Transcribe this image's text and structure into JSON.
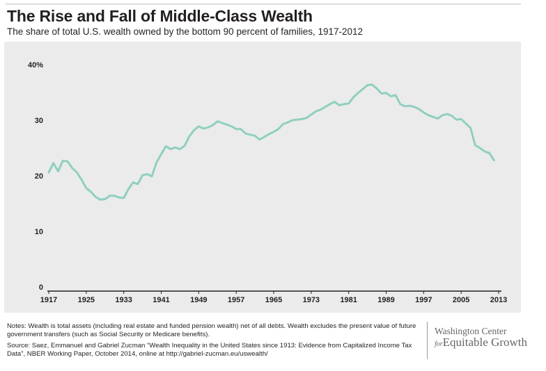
{
  "header": {
    "title": "The Rise and Fall of Middle-Class Wealth",
    "subtitle": "The share of total U.S. wealth owned by the bottom 90 percent of families, 1917-2012"
  },
  "footer": {
    "notes": "Notes: Wealth is total assets (including real estate and funded pension wealth) net of all debts. Wealth excludes the present value of future government transfers (such as Social Security or Medicare benefits).",
    "source": "Source: Saez, Emmanuel and Gabriel Zucman “Wealth Inequality in the United States since 1913: Evidence from Capitalized Income Tax Data”, NBER Working Paper, October 2014, online at http://gabriel-zucman.eu/uswealth/",
    "logo_line1": "Washington Center",
    "logo_for": "for",
    "logo_line2": "Equitable Growth"
  },
  "colors": {
    "line": "#8fcfc0",
    "plot_background": "#ebebeb",
    "axis": "#231f20"
  },
  "chart_data": {
    "type": "line",
    "title": "The Rise and Fall of Middle-Class Wealth",
    "subtitle": "The share of total U.S. wealth owned by the bottom 90 percent of families, 1917-2012",
    "xlabel": "",
    "ylabel": "",
    "xlim": [
      1917,
      2013
    ],
    "ylim": [
      0,
      40
    ],
    "x_ticks": [
      "1917",
      "1925",
      "1933",
      "1941",
      "1949",
      "1957",
      "1965",
      "1973",
      "1981",
      "1989",
      "1997",
      "2005",
      "2013"
    ],
    "y_ticks": [
      "0",
      "10",
      "20",
      "30",
      "40%"
    ],
    "grid": false,
    "x": [
      1917,
      1918,
      1919,
      1920,
      1921,
      1922,
      1923,
      1924,
      1925,
      1926,
      1927,
      1928,
      1929,
      1930,
      1931,
      1932,
      1933,
      1934,
      1935,
      1936,
      1937,
      1938,
      1939,
      1940,
      1941,
      1942,
      1943,
      1944,
      1945,
      1946,
      1947,
      1948,
      1949,
      1950,
      1951,
      1952,
      1953,
      1954,
      1955,
      1956,
      1957,
      1958,
      1959,
      1960,
      1961,
      1962,
      1963,
      1964,
      1965,
      1966,
      1967,
      1968,
      1969,
      1970,
      1971,
      1972,
      1973,
      1974,
      1975,
      1976,
      1977,
      1978,
      1979,
      1980,
      1981,
      1982,
      1983,
      1984,
      1985,
      1986,
      1987,
      1988,
      1989,
      1990,
      1991,
      1992,
      1993,
      1994,
      1995,
      1996,
      1997,
      1998,
      1999,
      2000,
      2001,
      2002,
      2003,
      2004,
      2005,
      2006,
      2007,
      2008,
      2009,
      2010,
      2011,
      2012
    ],
    "values": [
      20.6,
      22.3,
      20.8,
      22.7,
      22.6,
      21.4,
      20.6,
      19.3,
      17.8,
      17.1,
      16.2,
      15.7,
      15.8,
      16.4,
      16.4,
      16.1,
      16.0,
      17.6,
      18.8,
      18.5,
      20.1,
      20.3,
      19.9,
      22.4,
      23.9,
      25.3,
      24.8,
      25.1,
      24.8,
      25.4,
      27.1,
      28.2,
      28.9,
      28.5,
      28.7,
      29.1,
      29.8,
      29.5,
      29.2,
      28.9,
      28.4,
      28.4,
      27.6,
      27.4,
      27.2,
      26.5,
      27.0,
      27.5,
      27.9,
      28.4,
      29.3,
      29.6,
      30.0,
      30.1,
      30.2,
      30.4,
      31.0,
      31.6,
      31.9,
      32.4,
      32.9,
      33.3,
      32.7,
      32.9,
      33.0,
      34.1,
      34.9,
      35.6,
      36.3,
      36.4,
      35.7,
      34.8,
      34.9,
      34.3,
      34.5,
      32.9,
      32.5,
      32.6,
      32.4,
      32.0,
      31.4,
      30.9,
      30.6,
      30.3,
      30.9,
      31.1,
      30.8,
      30.1,
      30.2,
      29.4,
      28.6,
      25.5,
      25.0,
      24.4,
      24.1,
      22.8
    ]
  }
}
